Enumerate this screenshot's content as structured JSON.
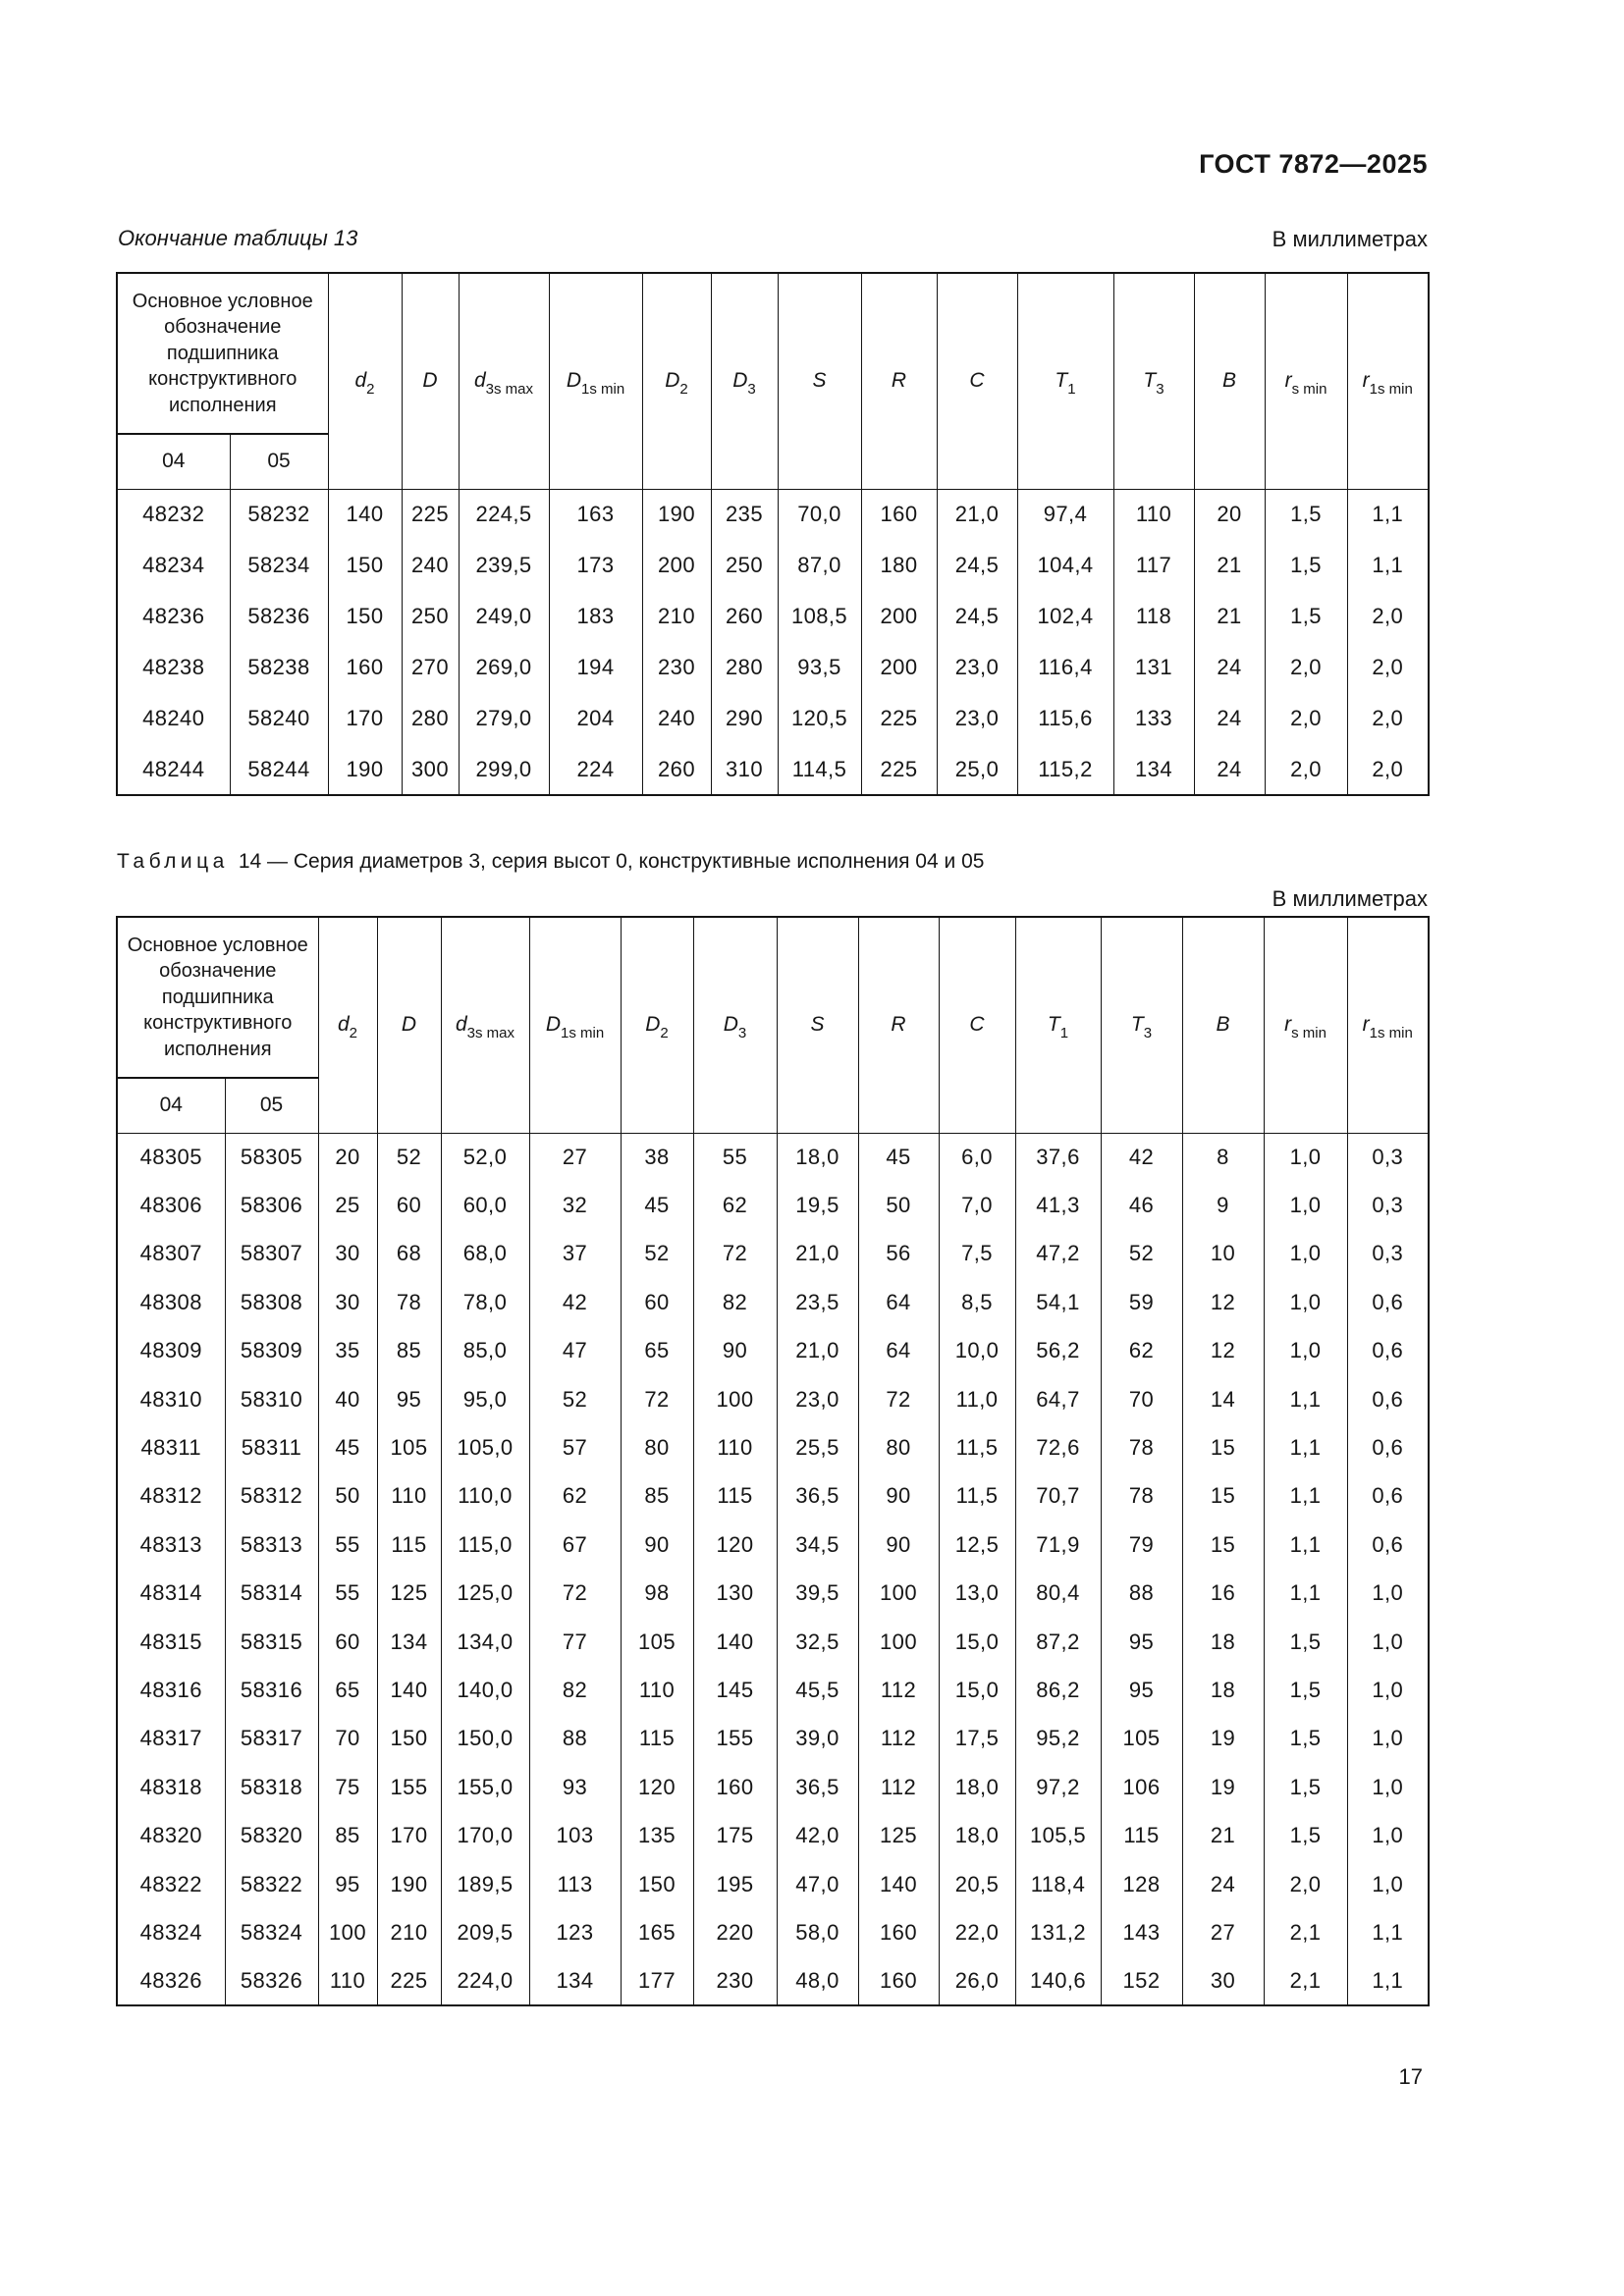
{
  "page": {
    "doc_number": "ГОСТ 7872—2025",
    "page_number": "17"
  },
  "columns": {
    "group_header": "Основное условное обозначение подшипника конструктивного исполнения",
    "sub_headers": [
      "04",
      "05"
    ],
    "dim_headers": [
      {
        "base": "d",
        "sub": "2"
      },
      {
        "base": "D",
        "sub": ""
      },
      {
        "base": "d",
        "sub": "3s max"
      },
      {
        "base": "D",
        "sub": "1s min"
      },
      {
        "base": "D",
        "sub": "2"
      },
      {
        "base": "D",
        "sub": "3"
      },
      {
        "base": "S",
        "sub": ""
      },
      {
        "base": "R",
        "sub": ""
      },
      {
        "base": "C",
        "sub": ""
      },
      {
        "base": "T",
        "sub": "1"
      },
      {
        "base": "T",
        "sub": "3"
      },
      {
        "base": "B",
        "sub": ""
      },
      {
        "base": "r",
        "sub": "s min"
      },
      {
        "base": "r",
        "sub": "1s min"
      }
    ]
  },
  "table13": {
    "continuation_label": "Окончание таблицы 13",
    "units_label": "В миллиметрах",
    "rows": [
      [
        "48232",
        "58232",
        "140",
        "225",
        "224,5",
        "163",
        "190",
        "235",
        "70,0",
        "160",
        "21,0",
        "97,4",
        "110",
        "20",
        "1,5",
        "1,1"
      ],
      [
        "48234",
        "58234",
        "150",
        "240",
        "239,5",
        "173",
        "200",
        "250",
        "87,0",
        "180",
        "24,5",
        "104,4",
        "117",
        "21",
        "1,5",
        "1,1"
      ],
      [
        "48236",
        "58236",
        "150",
        "250",
        "249,0",
        "183",
        "210",
        "260",
        "108,5",
        "200",
        "24,5",
        "102,4",
        "118",
        "21",
        "1,5",
        "2,0"
      ],
      [
        "48238",
        "58238",
        "160",
        "270",
        "269,0",
        "194",
        "230",
        "280",
        "93,5",
        "200",
        "23,0",
        "116,4",
        "131",
        "24",
        "2,0",
        "2,0"
      ],
      [
        "48240",
        "58240",
        "170",
        "280",
        "279,0",
        "204",
        "240",
        "290",
        "120,5",
        "225",
        "23,0",
        "115,6",
        "133",
        "24",
        "2,0",
        "2,0"
      ],
      [
        "48244",
        "58244",
        "190",
        "300",
        "299,0",
        "224",
        "260",
        "310",
        "114,5",
        "225",
        "25,0",
        "115,2",
        "134",
        "24",
        "2,0",
        "2,0"
      ]
    ]
  },
  "table14": {
    "caption_label": "Таблица",
    "caption_rest": "14 — Серия диаметров 3, серия высот 0, конструктивные исполнения 04 и 05",
    "units_label": "В миллиметрах",
    "rows": [
      [
        "48305",
        "58305",
        "20",
        "52",
        "52,0",
        "27",
        "38",
        "55",
        "18,0",
        "45",
        "6,0",
        "37,6",
        "42",
        "8",
        "1,0",
        "0,3"
      ],
      [
        "48306",
        "58306",
        "25",
        "60",
        "60,0",
        "32",
        "45",
        "62",
        "19,5",
        "50",
        "7,0",
        "41,3",
        "46",
        "9",
        "1,0",
        "0,3"
      ],
      [
        "48307",
        "58307",
        "30",
        "68",
        "68,0",
        "37",
        "52",
        "72",
        "21,0",
        "56",
        "7,5",
        "47,2",
        "52",
        "10",
        "1,0",
        "0,3"
      ],
      [
        "48308",
        "58308",
        "30",
        "78",
        "78,0",
        "42",
        "60",
        "82",
        "23,5",
        "64",
        "8,5",
        "54,1",
        "59",
        "12",
        "1,0",
        "0,6"
      ],
      [
        "48309",
        "58309",
        "35",
        "85",
        "85,0",
        "47",
        "65",
        "90",
        "21,0",
        "64",
        "10,0",
        "56,2",
        "62",
        "12",
        "1,0",
        "0,6"
      ],
      [
        "48310",
        "58310",
        "40",
        "95",
        "95,0",
        "52",
        "72",
        "100",
        "23,0",
        "72",
        "11,0",
        "64,7",
        "70",
        "14",
        "1,1",
        "0,6"
      ],
      [
        "48311",
        "58311",
        "45",
        "105",
        "105,0",
        "57",
        "80",
        "110",
        "25,5",
        "80",
        "11,5",
        "72,6",
        "78",
        "15",
        "1,1",
        "0,6"
      ],
      [
        "48312",
        "58312",
        "50",
        "110",
        "110,0",
        "62",
        "85",
        "115",
        "36,5",
        "90",
        "11,5",
        "70,7",
        "78",
        "15",
        "1,1",
        "0,6"
      ],
      [
        "48313",
        "58313",
        "55",
        "115",
        "115,0",
        "67",
        "90",
        "120",
        "34,5",
        "90",
        "12,5",
        "71,9",
        "79",
        "15",
        "1,1",
        "0,6"
      ],
      [
        "48314",
        "58314",
        "55",
        "125",
        "125,0",
        "72",
        "98",
        "130",
        "39,5",
        "100",
        "13,0",
        "80,4",
        "88",
        "16",
        "1,1",
        "1,0"
      ],
      [
        "48315",
        "58315",
        "60",
        "134",
        "134,0",
        "77",
        "105",
        "140",
        "32,5",
        "100",
        "15,0",
        "87,2",
        "95",
        "18",
        "1,5",
        "1,0"
      ],
      [
        "48316",
        "58316",
        "65",
        "140",
        "140,0",
        "82",
        "110",
        "145",
        "45,5",
        "112",
        "15,0",
        "86,2",
        "95",
        "18",
        "1,5",
        "1,0"
      ],
      [
        "48317",
        "58317",
        "70",
        "150",
        "150,0",
        "88",
        "115",
        "155",
        "39,0",
        "112",
        "17,5",
        "95,2",
        "105",
        "19",
        "1,5",
        "1,0"
      ],
      [
        "48318",
        "58318",
        "75",
        "155",
        "155,0",
        "93",
        "120",
        "160",
        "36,5",
        "112",
        "18,0",
        "97,2",
        "106",
        "19",
        "1,5",
        "1,0"
      ],
      [
        "48320",
        "58320",
        "85",
        "170",
        "170,0",
        "103",
        "135",
        "175",
        "42,0",
        "125",
        "18,0",
        "105,5",
        "115",
        "21",
        "1,5",
        "1,0"
      ],
      [
        "48322",
        "58322",
        "95",
        "190",
        "189,5",
        "113",
        "150",
        "195",
        "47,0",
        "140",
        "20,5",
        "118,4",
        "128",
        "24",
        "2,0",
        "1,0"
      ],
      [
        "48324",
        "58324",
        "100",
        "210",
        "209,5",
        "123",
        "165",
        "220",
        "58,0",
        "160",
        "22,0",
        "131,2",
        "143",
        "27",
        "2,1",
        "1,1"
      ],
      [
        "48326",
        "58326",
        "110",
        "225",
        "224,0",
        "134",
        "177",
        "230",
        "48,0",
        "160",
        "26,0",
        "140,6",
        "152",
        "30",
        "2,1",
        "1,1"
      ]
    ]
  },
  "col_widths": {
    "table13": [
      115,
      100,
      75,
      58,
      92,
      95,
      70,
      68,
      85,
      77,
      82,
      98,
      82,
      72,
      84,
      83
    ],
    "table14": [
      110,
      95,
      60,
      65,
      90,
      93,
      74,
      85,
      83,
      82,
      78,
      87,
      83,
      83,
      85,
      83
    ]
  }
}
